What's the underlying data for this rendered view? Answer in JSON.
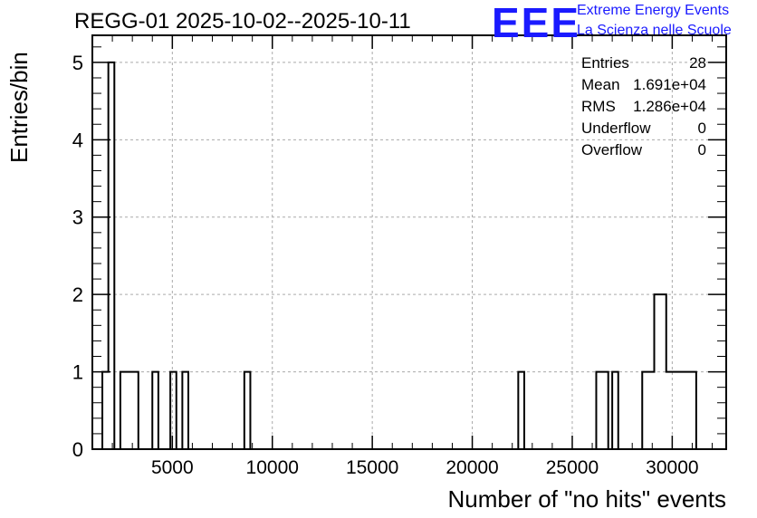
{
  "header": {
    "title": "REGG-01 2025-10-02--2025-10-11"
  },
  "logo": {
    "mark": "EEE",
    "line1": "Extreme Energy Events",
    "line2": "La Scienza nelle Scuole"
  },
  "stats": [
    {
      "label": "Entries",
      "value": "28"
    },
    {
      "label": "Mean",
      "value": "1.691e+04"
    },
    {
      "label": "RMS",
      "value": "1.286e+04"
    },
    {
      "label": "Underflow",
      "value": "0"
    },
    {
      "label": "Overflow",
      "value": "0"
    }
  ],
  "chart_data": {
    "type": "bar",
    "subtype": "histogram-step",
    "title": "REGG-01 2025-10-02--2025-10-11",
    "xlabel": "Number of \"no hits\" events",
    "ylabel": "Entries/bin",
    "xlim": [
      1000,
      32700
    ],
    "ylim": [
      0,
      5.35
    ],
    "bin_width": 300,
    "xticks": [
      5000,
      10000,
      15000,
      20000,
      25000,
      30000
    ],
    "xtick_labels": [
      "5000",
      "10000",
      "15000",
      "20000",
      "25000",
      "30000"
    ],
    "yticks": [
      0,
      1,
      2,
      3,
      4,
      5
    ],
    "ytick_labels": [
      "0",
      "1",
      "2",
      "3",
      "4",
      "5"
    ],
    "grid": true,
    "bins": [
      {
        "x0": 1500,
        "x1": 1800,
        "value": 1
      },
      {
        "x0": 1800,
        "x1": 2100,
        "value": 5
      },
      {
        "x0": 2400,
        "x1": 2700,
        "value": 1
      },
      {
        "x0": 2700,
        "x1": 3000,
        "value": 1
      },
      {
        "x0": 3000,
        "x1": 3300,
        "value": 1
      },
      {
        "x0": 4000,
        "x1": 4300,
        "value": 1
      },
      {
        "x0": 4900,
        "x1": 5200,
        "value": 1
      },
      {
        "x0": 5500,
        "x1": 5800,
        "value": 1
      },
      {
        "x0": 8600,
        "x1": 8900,
        "value": 1
      },
      {
        "x0": 22300,
        "x1": 22600,
        "value": 1
      },
      {
        "x0": 26200,
        "x1": 26500,
        "value": 1
      },
      {
        "x0": 26500,
        "x1": 26800,
        "value": 1
      },
      {
        "x0": 27000,
        "x1": 27300,
        "value": 1
      },
      {
        "x0": 28500,
        "x1": 28800,
        "value": 1
      },
      {
        "x0": 28800,
        "x1": 29100,
        "value": 1
      },
      {
        "x0": 29100,
        "x1": 29400,
        "value": 2
      },
      {
        "x0": 29400,
        "x1": 29700,
        "value": 2
      },
      {
        "x0": 29700,
        "x1": 30000,
        "value": 1
      },
      {
        "x0": 30000,
        "x1": 30300,
        "value": 1
      },
      {
        "x0": 30300,
        "x1": 30600,
        "value": 1
      },
      {
        "x0": 30600,
        "x1": 30900,
        "value": 1
      },
      {
        "x0": 30900,
        "x1": 31200,
        "value": 1
      }
    ]
  }
}
